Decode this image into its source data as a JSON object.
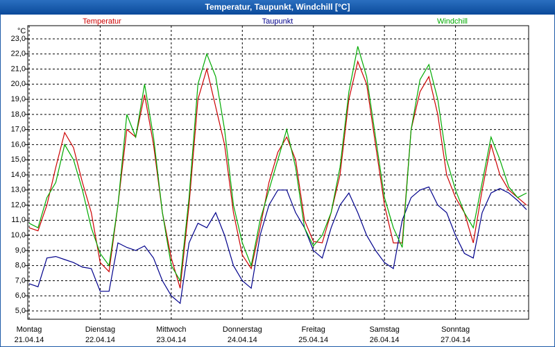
{
  "window_title": "Temperatur, Taupunkt, Windchill [°C]",
  "chart_data": {
    "type": "line",
    "y_unit": "°C",
    "x": [
      0,
      3,
      6,
      9,
      12,
      15,
      18,
      21,
      24,
      27,
      30,
      33,
      36,
      39,
      42,
      45,
      48,
      51,
      54,
      57,
      60,
      63,
      66,
      69,
      72,
      75,
      78,
      81,
      84,
      87,
      90,
      93,
      96,
      99,
      102,
      105,
      108,
      111,
      114,
      117,
      120,
      123,
      126,
      129,
      132,
      135,
      138,
      141,
      144,
      147,
      150,
      153,
      156,
      159,
      162,
      165,
      168
    ],
    "xlim": [
      0,
      168.7
    ],
    "xticks": [
      {
        "value": 0,
        "label": "Montag"
      },
      {
        "value": 24,
        "label": "Dienstag"
      },
      {
        "value": 48,
        "label": "Mittwoch"
      },
      {
        "value": 72,
        "label": "Donnerstag"
      },
      {
        "value": 96,
        "label": "Freitag"
      },
      {
        "value": 120,
        "label": "Samstag"
      },
      {
        "value": 144,
        "label": "Sonntag"
      }
    ],
    "xtick_dates": [
      "21.04.14",
      "22.04.14",
      "23.04.14",
      "24.04.14",
      "25.04.14",
      "26.04.14",
      "27.04.14"
    ],
    "ylim": [
      4.45,
      23.87
    ],
    "yticks": [
      {
        "value": 5,
        "label": "5,0"
      },
      {
        "value": 6,
        "label": "6,0"
      },
      {
        "value": 7,
        "label": "7,0"
      },
      {
        "value": 8,
        "label": "8,0"
      },
      {
        "value": 9,
        "label": "9,0"
      },
      {
        "value": 10,
        "label": "10,0"
      },
      {
        "value": 11,
        "label": "11,0"
      },
      {
        "value": 12,
        "label": "12,0"
      },
      {
        "value": 13,
        "label": "13,0"
      },
      {
        "value": 14,
        "label": "14,0"
      },
      {
        "value": 15,
        "label": "15,0"
      },
      {
        "value": 16,
        "label": "16,0"
      },
      {
        "value": 17,
        "label": "17,0"
      },
      {
        "value": 18,
        "label": "18,0"
      },
      {
        "value": 19,
        "label": "19,0"
      },
      {
        "value": 20,
        "label": "20,0"
      },
      {
        "value": 21,
        "label": "21,0"
      },
      {
        "value": 22,
        "label": "22,0"
      },
      {
        "value": 23,
        "label": "23,0"
      }
    ],
    "grid": true,
    "series": [
      {
        "name": "Temperatur",
        "color": "#cc0000",
        "values": [
          10.5,
          10.3,
          12.0,
          14.5,
          16.8,
          15.8,
          13.5,
          11.5,
          8.2,
          7.6,
          12.0,
          17.0,
          16.5,
          19.3,
          16.0,
          11.5,
          8.5,
          6.5,
          12.0,
          19.0,
          21.0,
          18.5,
          16.0,
          11.5,
          8.7,
          7.8,
          10.5,
          13.5,
          15.5,
          16.5,
          15.0,
          11.0,
          9.6,
          9.5,
          11.5,
          14.0,
          19.0,
          21.5,
          20.0,
          16.0,
          12.0,
          9.5,
          9.5,
          17.0,
          19.5,
          20.5,
          18.0,
          14.0,
          12.5,
          11.5,
          9.5,
          13.0,
          16.0,
          14.0,
          13.0,
          12.5,
          12.0
        ]
      },
      {
        "name": "Taupunkt",
        "color": "#00008b",
        "values": [
          6.8,
          6.6,
          8.5,
          8.6,
          8.4,
          8.2,
          7.9,
          7.8,
          6.3,
          6.3,
          9.5,
          9.2,
          9.0,
          9.3,
          8.5,
          7.0,
          6.0,
          5.5,
          9.5,
          10.8,
          10.5,
          11.5,
          10.0,
          8.0,
          7.0,
          6.5,
          10.0,
          12.0,
          13.0,
          13.0,
          11.5,
          10.5,
          9.0,
          8.5,
          10.5,
          12.0,
          12.8,
          11.5,
          10.0,
          9.0,
          8.2,
          7.8,
          11.0,
          12.5,
          13.0,
          13.2,
          12.0,
          11.5,
          10.0,
          8.8,
          8.5,
          11.5,
          12.8,
          13.1,
          12.8,
          12.3,
          11.7
        ]
      },
      {
        "name": "Windchill",
        "color": "#00aa00",
        "values": [
          10.8,
          10.5,
          12.5,
          13.5,
          16.0,
          15.0,
          13.0,
          10.5,
          8.8,
          8.0,
          12.0,
          18.0,
          16.5,
          20.0,
          16.5,
          11.5,
          8.0,
          7.0,
          12.5,
          20.0,
          22.0,
          20.5,
          17.0,
          12.0,
          9.5,
          8.0,
          11.0,
          13.0,
          15.0,
          17.0,
          14.5,
          10.5,
          9.3,
          10.0,
          11.5,
          14.5,
          19.5,
          22.5,
          20.5,
          16.5,
          12.5,
          10.5,
          9.2,
          17.0,
          20.3,
          21.3,
          19.0,
          15.0,
          13.0,
          11.5,
          10.5,
          13.5,
          16.5,
          15.0,
          13.2,
          12.5,
          12.8
        ]
      }
    ]
  }
}
